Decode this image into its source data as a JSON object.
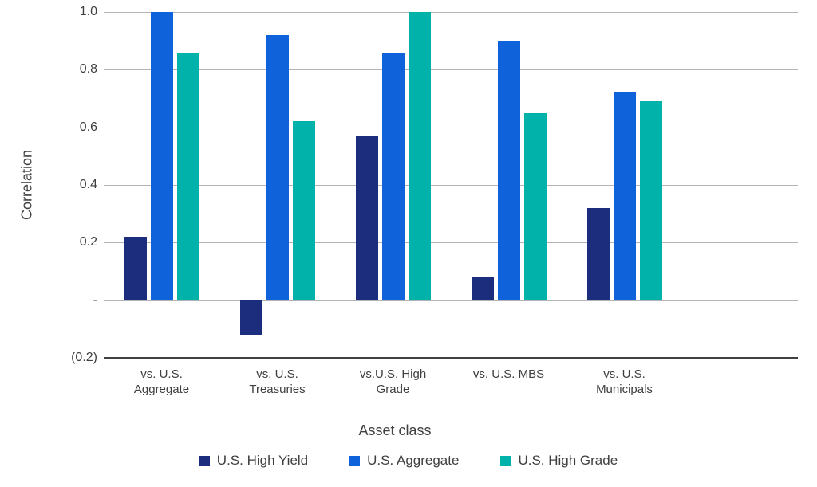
{
  "chart_data": {
    "type": "bar",
    "title": "",
    "xlabel": "Asset class",
    "ylabel": "Correlation",
    "ylim": [
      -0.2,
      1.0
    ],
    "ytick_values": [
      1.0,
      0.8,
      0.6,
      0.4,
      0.2,
      0.0,
      -0.2
    ],
    "ytick_labels": [
      "1.0",
      "0.8",
      "0.6",
      "0.4",
      "0.2",
      "-",
      "(0.2)"
    ],
    "grid": true,
    "legend_position": "bottom",
    "categories": [
      "vs. U.S. Aggregate",
      "vs. U.S. Treasuries",
      "vs.U.S. High Grade",
      "vs. U.S. MBS",
      "vs. U.S. Municipals"
    ],
    "series": [
      {
        "name": "U.S. High Yield",
        "color": "#1c2d7e",
        "values": [
          0.22,
          -0.12,
          0.57,
          0.08,
          0.32
        ]
      },
      {
        "name": "U.S. Aggregate",
        "color": "#0f62d9",
        "values": [
          1.0,
          0.92,
          0.86,
          0.9,
          0.72
        ]
      },
      {
        "name": "U.S. High Grade",
        "color": "#00b2a9",
        "values": [
          0.86,
          0.62,
          1.0,
          0.65,
          0.69
        ]
      }
    ]
  }
}
